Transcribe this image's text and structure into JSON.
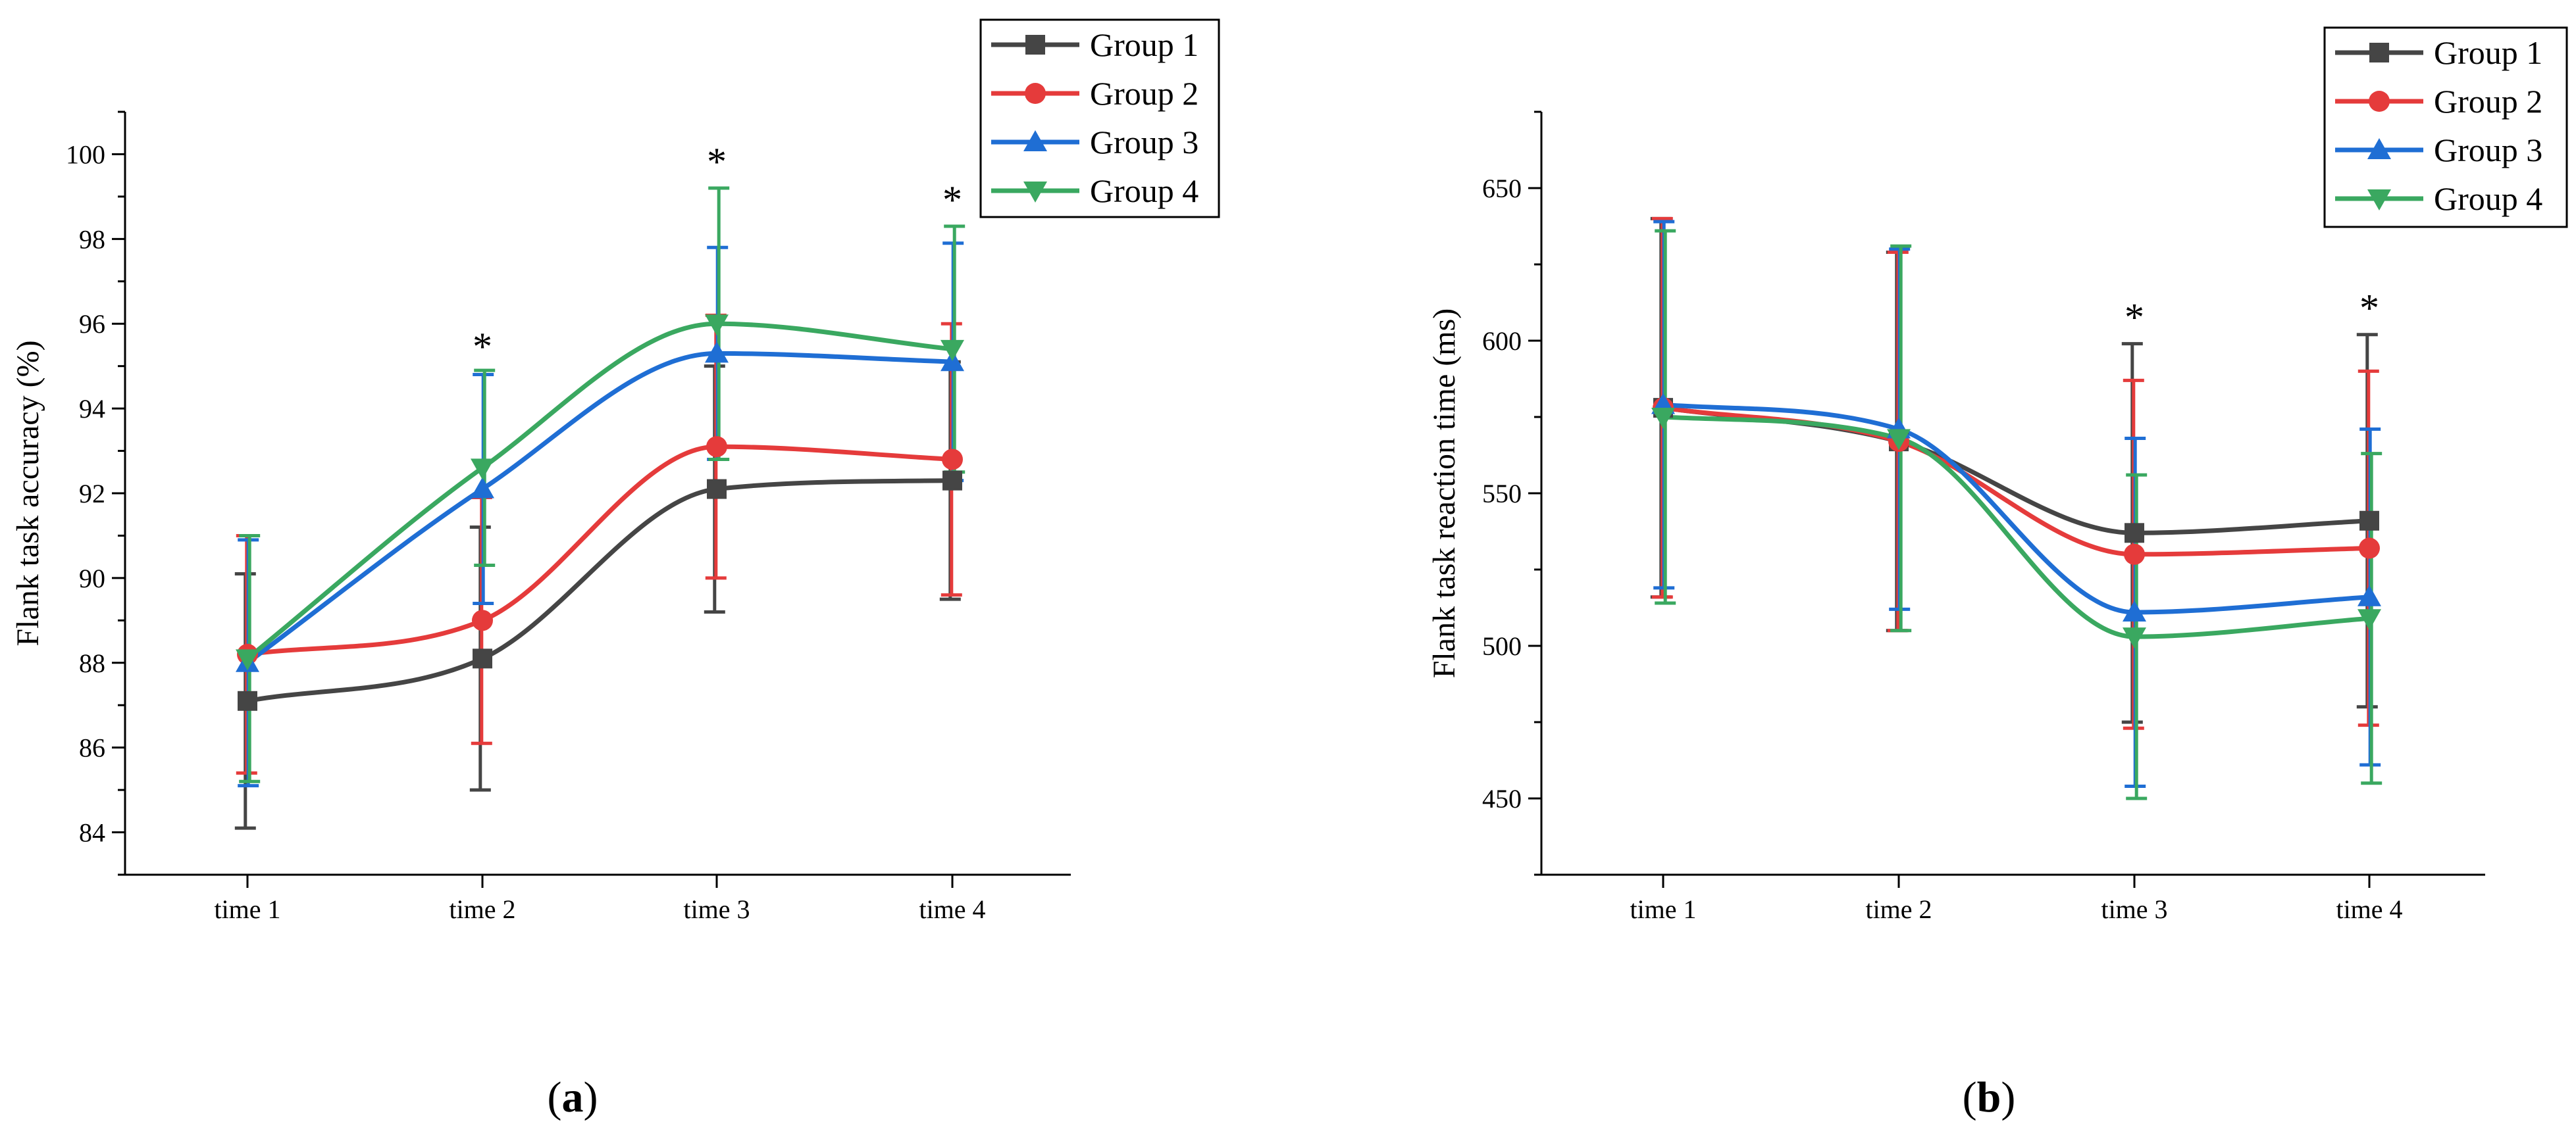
{
  "chart_data": [
    {
      "type": "line",
      "panel_label": "a",
      "title": "",
      "xlabel": "",
      "ylabel": "Flank task accuracy (%)",
      "categories": [
        "time 1",
        "time 2",
        "time 3",
        "time 4"
      ],
      "ylim": [
        83,
        101
      ],
      "yticks": [
        84,
        86,
        88,
        90,
        92,
        94,
        96,
        98,
        100
      ],
      "significance_marker": "*",
      "significant_at": [
        "time 2",
        "time 3",
        "time 4"
      ],
      "legend_position": "top-right",
      "series": [
        {
          "name": "Group 1",
          "color": "#454545",
          "marker": "square",
          "values": [
            87.1,
            88.1,
            92.1,
            92.3
          ],
          "error": [
            3.0,
            3.1,
            2.9,
            2.8
          ]
        },
        {
          "name": "Group 2",
          "color": "#e53b3b",
          "marker": "circle",
          "values": [
            88.2,
            89.0,
            93.1,
            92.8
          ],
          "error": [
            2.8,
            2.9,
            3.1,
            3.2
          ]
        },
        {
          "name": "Group 3",
          "color": "#1f6ed4",
          "marker": "triangle-up",
          "values": [
            88.0,
            92.1,
            95.3,
            95.1
          ],
          "error": [
            2.9,
            2.7,
            2.5,
            2.8
          ]
        },
        {
          "name": "Group 4",
          "color": "#3aa860",
          "marker": "triangle-down",
          "values": [
            88.1,
            92.6,
            96.0,
            95.4
          ],
          "error": [
            2.9,
            2.3,
            3.2,
            2.9
          ]
        }
      ]
    },
    {
      "type": "line",
      "panel_label": "b",
      "title": "",
      "xlabel": "",
      "ylabel": "Flank task reaction time (ms)",
      "categories": [
        "time 1",
        "time 2",
        "time 3",
        "time 4"
      ],
      "ylim": [
        425,
        675
      ],
      "yticks": [
        450,
        500,
        550,
        600,
        650
      ],
      "significance_marker": "*",
      "significant_at": [
        "time 3",
        "time 4"
      ],
      "legend_position": "top-right",
      "series": [
        {
          "name": "Group 1",
          "color": "#454545",
          "marker": "square",
          "values": [
            578,
            567,
            537,
            541
          ],
          "error": [
            62,
            62,
            62,
            61
          ]
        },
        {
          "name": "Group 2",
          "color": "#e53b3b",
          "marker": "circle",
          "values": [
            578,
            567,
            530,
            532
          ],
          "error": [
            62,
            62,
            57,
            58
          ]
        },
        {
          "name": "Group 3",
          "color": "#1f6ed4",
          "marker": "triangle-up",
          "values": [
            579,
            571,
            511,
            516
          ],
          "error": [
            60,
            59,
            57,
            55
          ]
        },
        {
          "name": "Group 4",
          "color": "#3aa860",
          "marker": "triangle-down",
          "values": [
            575,
            568,
            503,
            509
          ],
          "error": [
            61,
            63,
            53,
            54
          ]
        }
      ]
    }
  ]
}
